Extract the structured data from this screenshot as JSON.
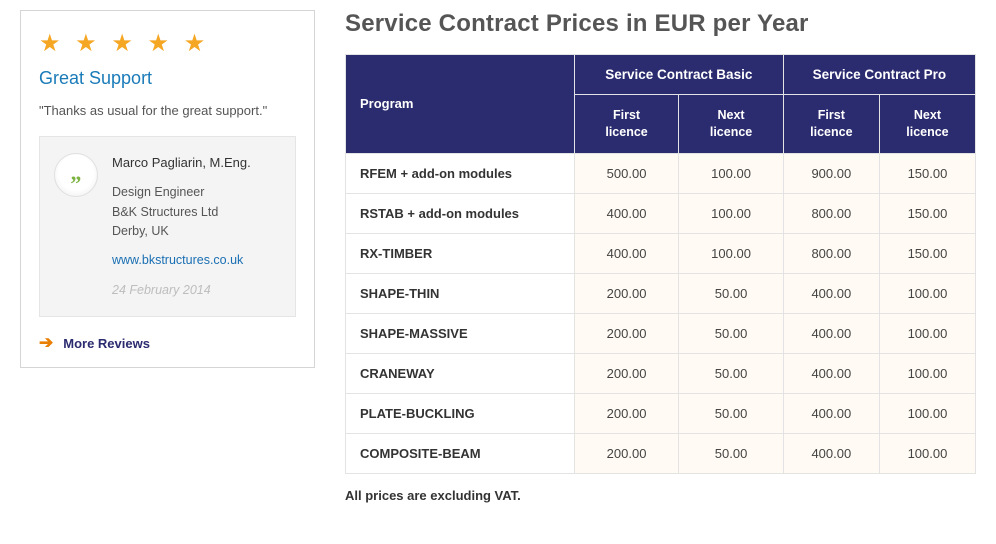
{
  "review": {
    "stars": "★ ★ ★ ★ ★",
    "title": "Great Support",
    "text": "\"Thanks as usual for the great support.\"",
    "avatar_glyph": "„",
    "name": "Marco Pagliarin, M.Eng.",
    "role": "Design Engineer",
    "company": "B&K Structures Ltd",
    "location": "Derby, UK",
    "link_text": "www.bkstructures.co.uk",
    "link_href": "http://www.bkstructures.co.uk",
    "date": "24 February 2014",
    "more_label": "More Reviews"
  },
  "pricing": {
    "heading": "Service Contract Prices in EUR per Year",
    "column_header_program": "Program",
    "group_basic": "Service Contract Basic",
    "group_pro": "Service Contract Pro",
    "sub_first": "First licence",
    "sub_next": "Next licence",
    "rows": [
      {
        "program": "RFEM + add-on modules",
        "basic_first": "500.00",
        "basic_next": "100.00",
        "pro_first": "900.00",
        "pro_next": "150.00"
      },
      {
        "program": "RSTAB + add-on modules",
        "basic_first": "400.00",
        "basic_next": "100.00",
        "pro_first": "800.00",
        "pro_next": "150.00"
      },
      {
        "program": "RX-TIMBER",
        "basic_first": "400.00",
        "basic_next": "100.00",
        "pro_first": "800.00",
        "pro_next": "150.00"
      },
      {
        "program": "SHAPE-THIN",
        "basic_first": "200.00",
        "basic_next": "50.00",
        "pro_first": "400.00",
        "pro_next": "100.00"
      },
      {
        "program": "SHAPE-MASSIVE",
        "basic_first": "200.00",
        "basic_next": "50.00",
        "pro_first": "400.00",
        "pro_next": "100.00"
      },
      {
        "program": "CRANEWAY",
        "basic_first": "200.00",
        "basic_next": "50.00",
        "pro_first": "400.00",
        "pro_next": "100.00"
      },
      {
        "program": "PLATE-BUCKLING",
        "basic_first": "200.00",
        "basic_next": "50.00",
        "pro_first": "400.00",
        "pro_next": "100.00"
      },
      {
        "program": "COMPOSITE-BEAM",
        "basic_first": "200.00",
        "basic_next": "50.00",
        "pro_first": "400.00",
        "pro_next": "100.00"
      }
    ],
    "vat_note": "All prices are excluding VAT.",
    "colors": {
      "header_bg": "#2b2b6f",
      "header_text": "#ffffff",
      "cell_bg": "#fffaf3",
      "star_color": "#f5a623",
      "link_color": "#1a6fb3"
    }
  }
}
